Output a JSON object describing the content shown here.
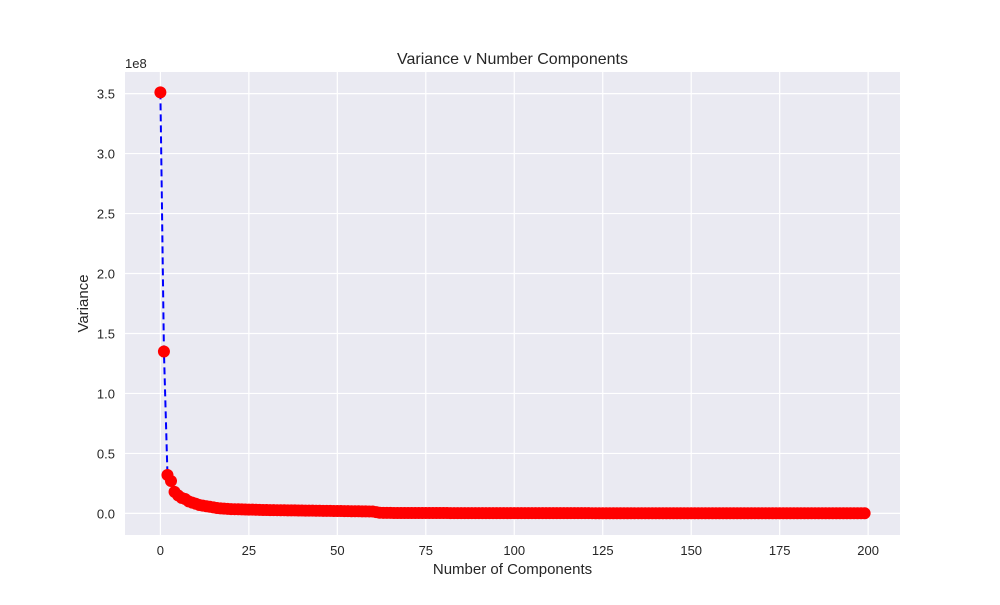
{
  "chart_data": {
    "type": "scatter",
    "title": "Variance v Number Components",
    "xlabel": "Number of Components",
    "ylabel": "Variance",
    "y_offset_label": "1e8",
    "xlim": [
      -10,
      209
    ],
    "ylim": [
      -0.18,
      3.68
    ],
    "x_ticks": [
      0,
      25,
      50,
      75,
      100,
      125,
      150,
      175,
      200
    ],
    "x_tick_labels": [
      "0",
      "25",
      "50",
      "75",
      "100",
      "125",
      "150",
      "175",
      "200"
    ],
    "y_ticks": [
      0.0,
      0.5,
      1.0,
      1.5,
      2.0,
      2.5,
      3.0,
      3.5
    ],
    "y_tick_labels": [
      "0.0",
      "0.5",
      "1.0",
      "1.5",
      "2.0",
      "2.5",
      "3.0",
      "3.5"
    ],
    "grid": true,
    "legend": "none",
    "colors": {
      "plot_background": "#eaeaf2",
      "grid": "#ffffff",
      "marker": "#ff0000",
      "line": "#0000ff"
    },
    "series": [
      {
        "line_style": "dashed",
        "marker": "circle",
        "x": [
          0,
          1,
          2,
          3,
          4,
          5,
          6,
          7,
          8,
          9,
          10,
          11,
          12,
          13,
          14,
          15,
          16,
          17,
          18,
          19,
          20,
          25,
          30,
          35,
          40,
          45,
          50,
          55,
          60,
          62,
          65,
          70,
          80,
          90,
          100,
          110,
          120,
          130,
          140,
          150,
          160,
          170,
          180,
          190,
          199
        ],
        "y": [
          3.51,
          1.35,
          0.32,
          0.27,
          0.18,
          0.15,
          0.13,
          0.12,
          0.1,
          0.09,
          0.08,
          0.07,
          0.065,
          0.06,
          0.055,
          0.05,
          0.045,
          0.042,
          0.04,
          0.038,
          0.036,
          0.032,
          0.028,
          0.026,
          0.024,
          0.022,
          0.02,
          0.018,
          0.016,
          0.005,
          0.004,
          0.003,
          0.003,
          0.002,
          0.002,
          0.002,
          0.002,
          0.001,
          0.001,
          0.001,
          0.001,
          0.001,
          0.001,
          0.001,
          0.001
        ]
      }
    ]
  }
}
